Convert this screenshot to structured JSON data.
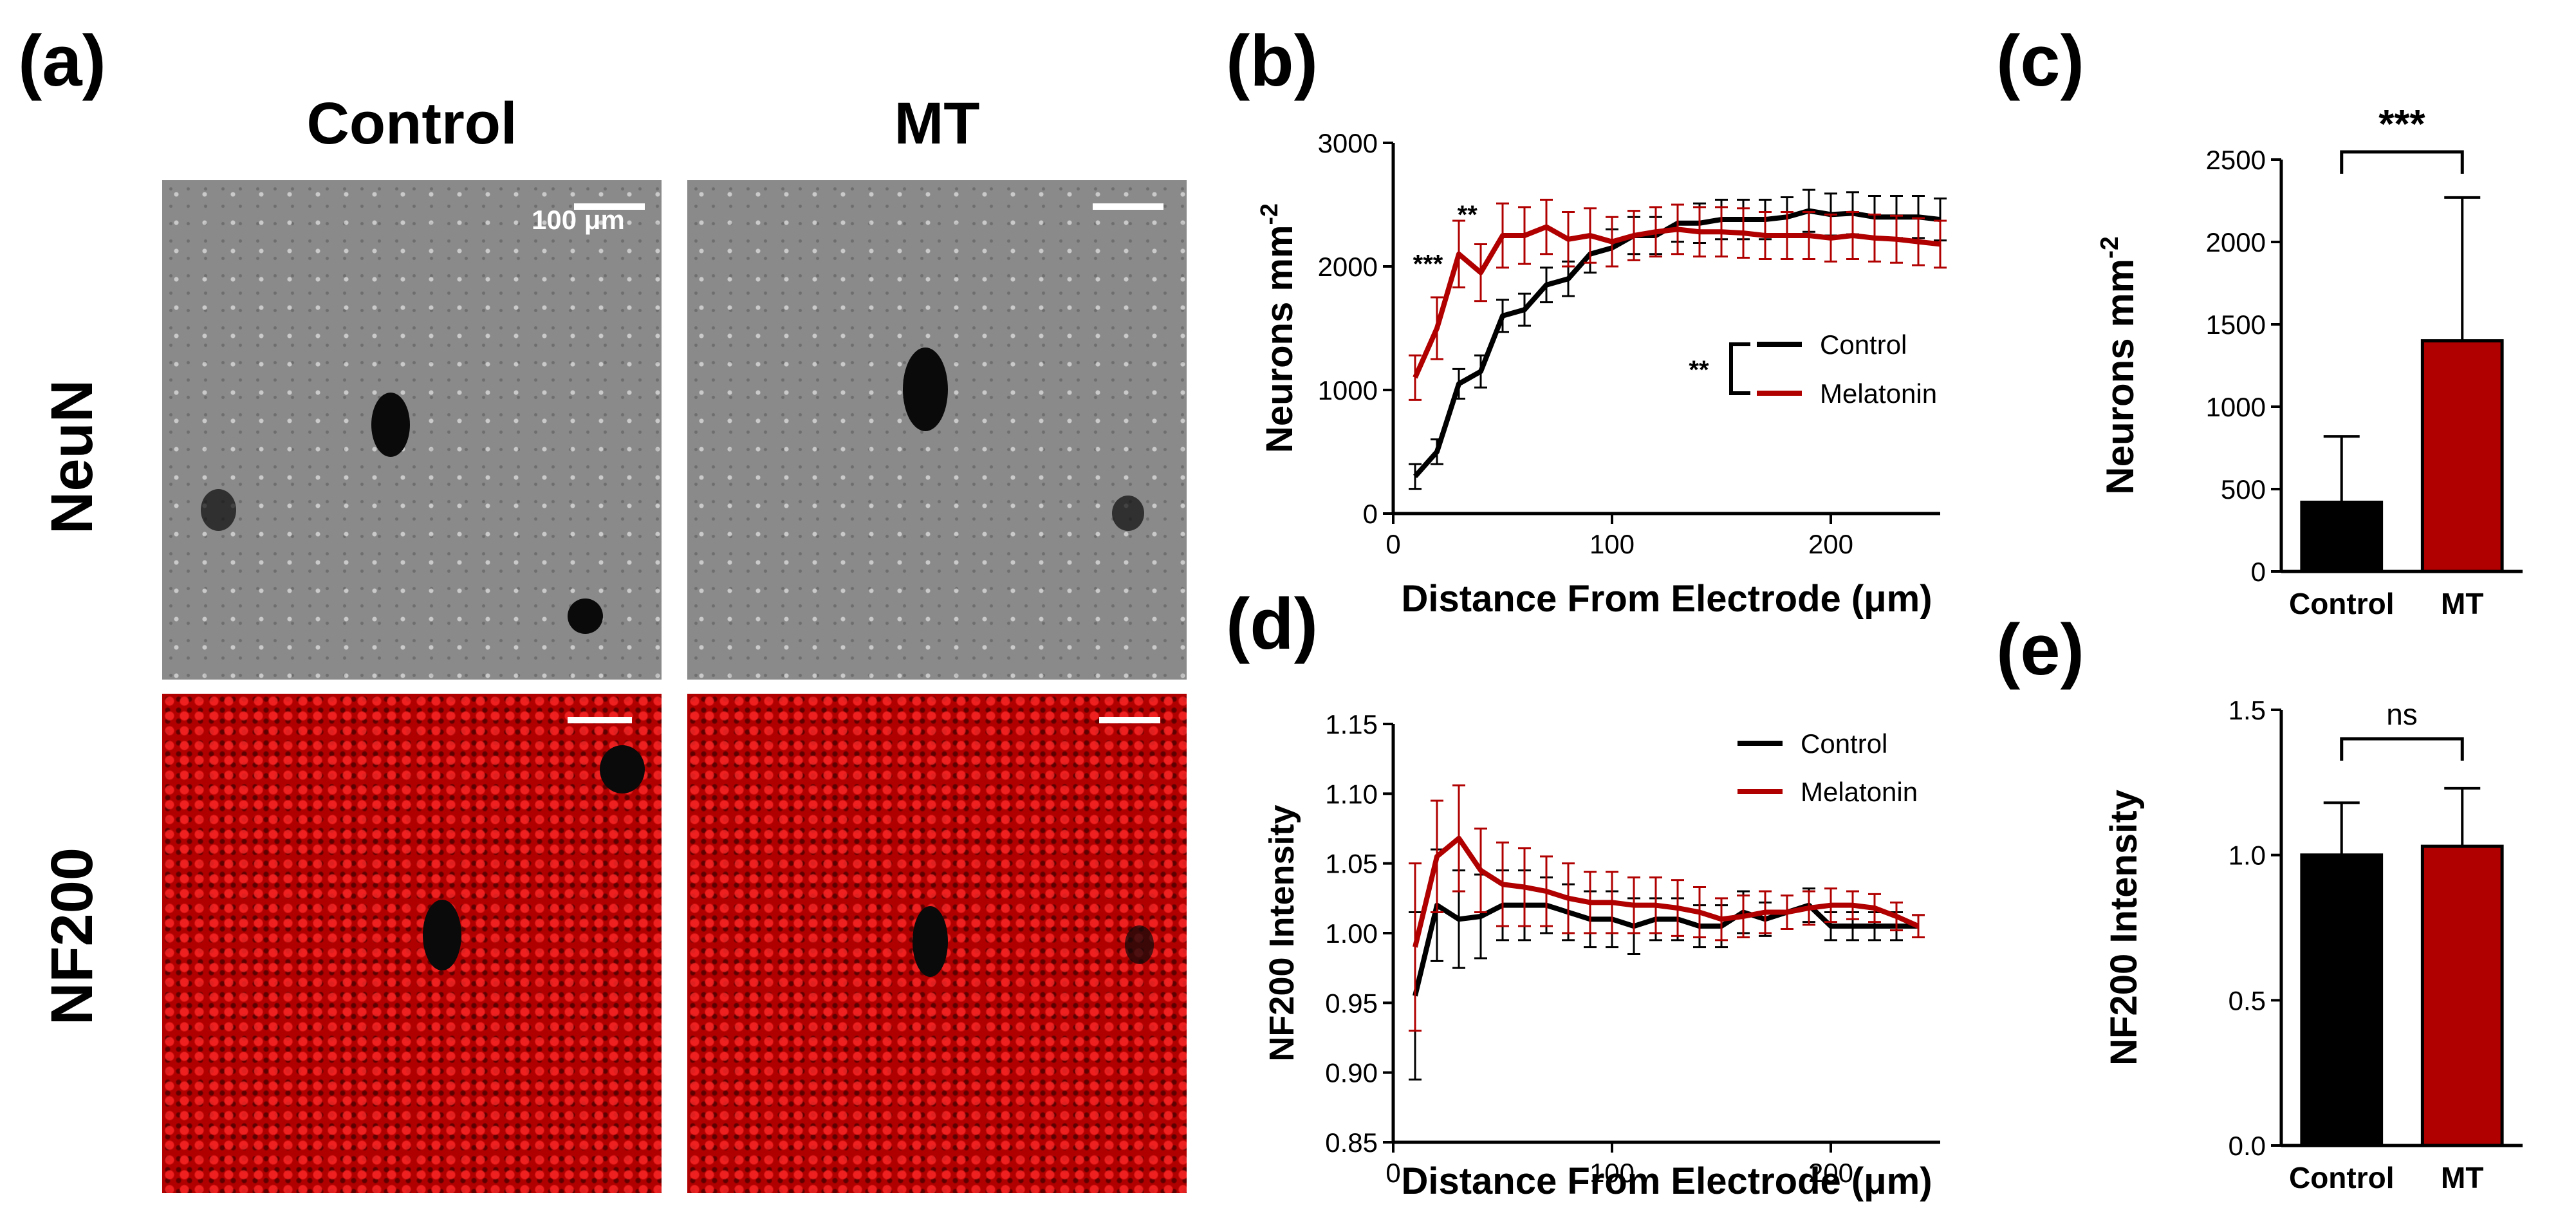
{
  "panel_labels": {
    "a": "(a)",
    "b": "(b)",
    "c": "(c)",
    "d": "(d)",
    "e": "(e)"
  },
  "micrographs": {
    "columns": [
      "Control",
      "MT"
    ],
    "rows": [
      "NeuN",
      "NF200"
    ],
    "scale_label": "100 μm"
  },
  "colors": {
    "control": "#000000",
    "melatonin": "#b00000"
  },
  "chart_data": [
    {
      "id": "b",
      "type": "line",
      "xlabel": "Distance From Electrode (μm)",
      "ylabel": "Neurons mm",
      "ylabel_sup": "-2",
      "xlim": [
        0,
        250
      ],
      "ylim": [
        0,
        3000
      ],
      "xticks": [
        0,
        100,
        200
      ],
      "yticks": [
        0,
        1000,
        2000,
        3000
      ],
      "series": [
        {
          "name": "Control",
          "x": [
            10,
            20,
            30,
            40,
            50,
            60,
            70,
            80,
            90,
            100,
            110,
            120,
            130,
            140,
            150,
            160,
            170,
            180,
            190,
            200,
            210,
            220,
            230,
            240,
            250
          ],
          "y": [
            300,
            500,
            1050,
            1150,
            1600,
            1650,
            1850,
            1900,
            2100,
            2150,
            2250,
            2250,
            2350,
            2350,
            2380,
            2380,
            2380,
            2400,
            2450,
            2420,
            2430,
            2400,
            2400,
            2400,
            2380
          ],
          "err": [
            100,
            100,
            120,
            130,
            130,
            130,
            140,
            140,
            150,
            150,
            150,
            150,
            150,
            160,
            160,
            160,
            160,
            160,
            170,
            170,
            170,
            170,
            170,
            170,
            170
          ]
        },
        {
          "name": "Melatonin",
          "x": [
            10,
            20,
            30,
            40,
            50,
            60,
            70,
            80,
            90,
            100,
            110,
            120,
            130,
            140,
            150,
            160,
            170,
            180,
            190,
            200,
            210,
            220,
            230,
            240,
            250
          ],
          "y": [
            1100,
            1500,
            2100,
            1950,
            2250,
            2250,
            2320,
            2220,
            2250,
            2200,
            2250,
            2280,
            2300,
            2280,
            2280,
            2270,
            2250,
            2250,
            2250,
            2230,
            2250,
            2230,
            2220,
            2200,
            2180
          ],
          "err": [
            180,
            250,
            270,
            230,
            260,
            230,
            220,
            220,
            220,
            200,
            200,
            200,
            200,
            200,
            200,
            200,
            190,
            190,
            190,
            190,
            190,
            190,
            190,
            190,
            190
          ]
        }
      ],
      "annotations": [
        {
          "text": "***",
          "x": 10,
          "y": 1950
        },
        {
          "text": "**",
          "x": 28,
          "y": 2350
        }
      ],
      "legend": {
        "significance": "**",
        "entries": [
          "Control",
          "Melatonin"
        ]
      }
    },
    {
      "id": "c",
      "type": "bar",
      "categories": [
        "Control",
        "MT"
      ],
      "values": [
        420,
        1400
      ],
      "errors": [
        400,
        870
      ],
      "ylabel": "Neurons mm",
      "ylabel_sup": "-2",
      "ylim": [
        0,
        2500
      ],
      "yticks": [
        0,
        500,
        1000,
        1500,
        2000,
        2500
      ],
      "significance": "***"
    },
    {
      "id": "d",
      "type": "line",
      "xlabel": "Distance From Electrode (μm)",
      "ylabel": "NF200 Intensity",
      "xlim": [
        0,
        250
      ],
      "ylim": [
        0.85,
        1.15
      ],
      "xticks": [
        0,
        100,
        200
      ],
      "yticks": [
        0.85,
        0.9,
        0.95,
        1.0,
        1.05,
        1.1,
        1.15
      ],
      "ytick_labels": [
        "0.85",
        "0.90",
        "0.95",
        "1.00",
        "1.05",
        "1.10",
        "1.15"
      ],
      "series": [
        {
          "name": "Control",
          "x": [
            10,
            20,
            30,
            40,
            50,
            60,
            70,
            80,
            90,
            100,
            110,
            120,
            130,
            140,
            150,
            160,
            170,
            180,
            190,
            200,
            210,
            220,
            230,
            240
          ],
          "y": [
            0.955,
            1.02,
            1.01,
            1.012,
            1.02,
            1.02,
            1.02,
            1.015,
            1.01,
            1.01,
            1.005,
            1.01,
            1.01,
            1.005,
            1.005,
            1.015,
            1.01,
            1.015,
            1.02,
            1.005,
            1.005,
            1.005,
            1.005,
            1.005
          ],
          "err": [
            0.06,
            0.04,
            0.035,
            0.03,
            0.025,
            0.025,
            0.02,
            0.02,
            0.02,
            0.02,
            0.02,
            0.015,
            0.015,
            0.015,
            0.015,
            0.015,
            0.012,
            0.012,
            0.012,
            0.01,
            0.01,
            0.01,
            0.01,
            0.008
          ]
        },
        {
          "name": "Melatonin",
          "x": [
            10,
            20,
            30,
            40,
            50,
            60,
            70,
            80,
            90,
            100,
            110,
            120,
            130,
            140,
            150,
            160,
            170,
            180,
            190,
            200,
            210,
            220,
            230,
            240
          ],
          "y": [
            0.99,
            1.055,
            1.068,
            1.045,
            1.035,
            1.033,
            1.03,
            1.025,
            1.022,
            1.022,
            1.02,
            1.02,
            1.018,
            1.015,
            1.01,
            1.012,
            1.015,
            1.015,
            1.018,
            1.02,
            1.02,
            1.018,
            1.012,
            1.005
          ],
          "err": [
            0.06,
            0.04,
            0.038,
            0.03,
            0.03,
            0.028,
            0.025,
            0.025,
            0.022,
            0.022,
            0.02,
            0.02,
            0.02,
            0.018,
            0.015,
            0.015,
            0.015,
            0.012,
            0.012,
            0.012,
            0.01,
            0.01,
            0.01,
            0.008
          ]
        }
      ],
      "legend": {
        "entries": [
          "Control",
          "Melatonin"
        ]
      }
    },
    {
      "id": "e",
      "type": "bar",
      "categories": [
        "Control",
        "MT"
      ],
      "values": [
        1.0,
        1.03
      ],
      "errors": [
        0.18,
        0.2
      ],
      "ylabel": "NF200 Intensity",
      "ylim": [
        0,
        1.5
      ],
      "yticks": [
        0,
        0.5,
        1.0,
        1.5
      ],
      "ytick_labels": [
        "0.0",
        "0.5",
        "1.0",
        "1.5"
      ],
      "significance": "ns"
    }
  ]
}
